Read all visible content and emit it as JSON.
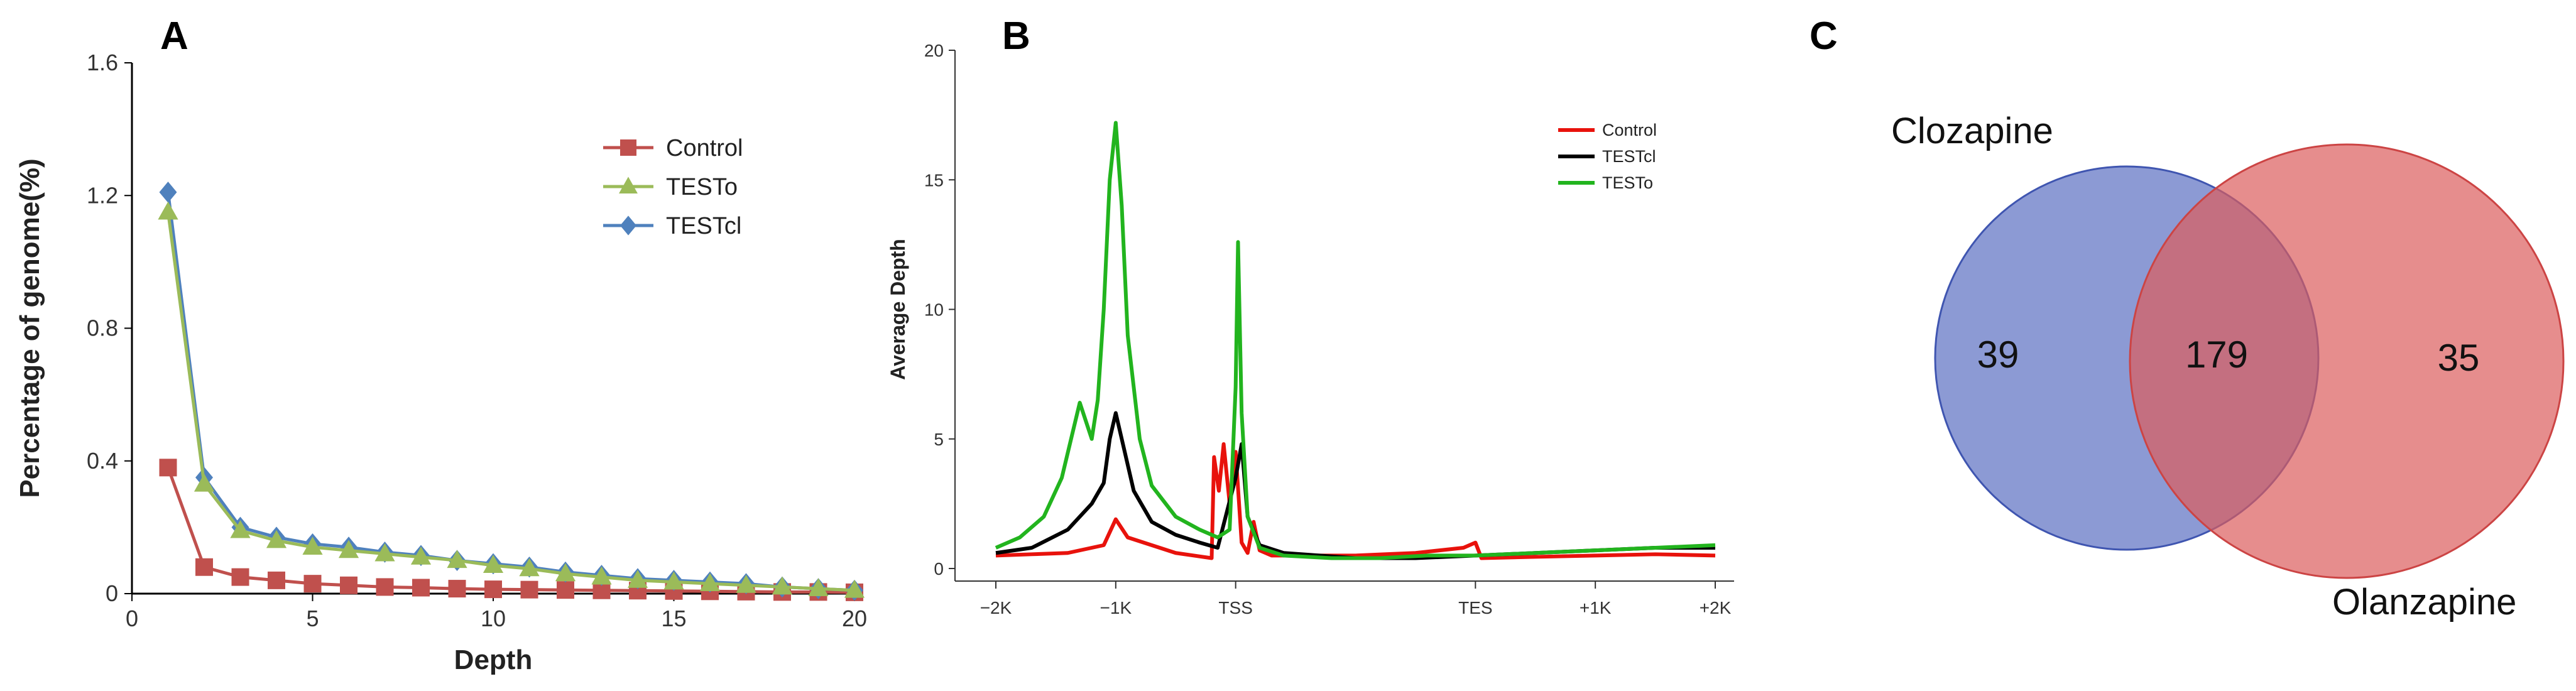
{
  "chart_data": [
    {
      "panel": "A",
      "type": "line",
      "title": "",
      "xlabel": "Depth",
      "ylabel": "Percentage of genome(%)",
      "xlim": [
        0,
        20
      ],
      "ylim": [
        0,
        1.6
      ],
      "xticks": [
        "0",
        "5",
        "10",
        "15",
        "20"
      ],
      "yticks": [
        "0",
        "0.4",
        "0.8",
        "1.2",
        "1.6"
      ],
      "legend_position": "top-right",
      "x": [
        1,
        2,
        3,
        4,
        5,
        6,
        7,
        8,
        9,
        10,
        11,
        12,
        13,
        14,
        15,
        16,
        17,
        18,
        19,
        20
      ],
      "series": [
        {
          "name": "Control",
          "color": "#c0504d",
          "marker": "square",
          "values": [
            0.38,
            0.08,
            0.05,
            0.04,
            0.03,
            0.025,
            0.02,
            0.018,
            0.015,
            0.013,
            0.012,
            0.011,
            0.01,
            0.009,
            0.008,
            0.007,
            0.006,
            0.005,
            0.005,
            0.004
          ]
        },
        {
          "name": "TESTo",
          "color": "#9bbb59",
          "marker": "triangle",
          "values": [
            1.15,
            0.33,
            0.19,
            0.16,
            0.14,
            0.13,
            0.12,
            0.11,
            0.1,
            0.085,
            0.075,
            0.06,
            0.05,
            0.04,
            0.035,
            0.03,
            0.025,
            0.02,
            0.015,
            0.01
          ]
        },
        {
          "name": "TESTcl",
          "color": "#4f81bd",
          "marker": "diamond",
          "values": [
            1.21,
            0.35,
            0.2,
            0.17,
            0.15,
            0.14,
            0.125,
            0.115,
            0.1,
            0.09,
            0.08,
            0.065,
            0.055,
            0.045,
            0.04,
            0.035,
            0.03,
            0.02,
            0.015,
            0.01
          ]
        }
      ]
    },
    {
      "panel": "B",
      "type": "line",
      "title": "",
      "xlabel": "",
      "ylabel": "Average Depth",
      "ylim": [
        0,
        20
      ],
      "yticks": [
        "0",
        "5",
        "10",
        "15",
        "20"
      ],
      "xticks": [
        "−2K",
        "−1K",
        "TSS",
        "TES",
        "+1K",
        "+2K"
      ],
      "xtick_positions": [
        0,
        1,
        2,
        4,
        5,
        6
      ],
      "xlim": [
        0,
        6
      ],
      "legend_position": "top-right",
      "series": [
        {
          "name": "Control",
          "color": "#e8120c",
          "x": [
            0,
            0.3,
            0.6,
            0.9,
            1.0,
            1.1,
            1.3,
            1.5,
            1.8,
            1.82,
            1.86,
            1.9,
            1.95,
            2.0,
            2.05,
            2.1,
            2.15,
            2.2,
            2.3,
            2.6,
            3.0,
            3.5,
            3.9,
            4.0,
            4.05,
            4.5,
            5.0,
            5.5,
            6.0
          ],
          "y": [
            0.5,
            0.55,
            0.6,
            0.9,
            1.9,
            1.2,
            0.9,
            0.6,
            0.4,
            4.3,
            3.0,
            4.8,
            2.5,
            4.5,
            1.0,
            0.6,
            1.8,
            0.7,
            0.5,
            0.5,
            0.5,
            0.6,
            0.8,
            1.0,
            0.4,
            0.45,
            0.5,
            0.55,
            0.5
          ]
        },
        {
          "name": "TESTcl",
          "color": "#000000",
          "x": [
            0,
            0.3,
            0.6,
            0.8,
            0.9,
            0.95,
            1.0,
            1.05,
            1.15,
            1.3,
            1.5,
            1.7,
            1.85,
            2.0,
            2.05,
            2.1,
            2.2,
            2.4,
            3.0,
            3.5,
            4.0,
            4.5,
            5.0,
            5.5,
            6.0
          ],
          "y": [
            0.6,
            0.8,
            1.5,
            2.5,
            3.3,
            5.0,
            6.0,
            5.0,
            3.0,
            1.8,
            1.3,
            1.0,
            0.8,
            3.5,
            4.8,
            2.0,
            0.9,
            0.6,
            0.4,
            0.4,
            0.5,
            0.6,
            0.7,
            0.8,
            0.8
          ]
        },
        {
          "name": "TESTo",
          "color": "#22b41e",
          "x": [
            0,
            0.2,
            0.4,
            0.55,
            0.7,
            0.8,
            0.85,
            0.9,
            0.95,
            1.0,
            1.05,
            1.1,
            1.2,
            1.3,
            1.5,
            1.7,
            1.85,
            1.95,
            2.0,
            2.02,
            2.05,
            2.1,
            2.2,
            2.4,
            2.8,
            3.2,
            3.6,
            4.0,
            4.5,
            5.0,
            5.5,
            6.0
          ],
          "y": [
            0.8,
            1.2,
            2.0,
            3.5,
            6.4,
            5.0,
            6.5,
            10.0,
            15.0,
            17.2,
            14.0,
            9.0,
            5.0,
            3.2,
            2.0,
            1.5,
            1.2,
            1.5,
            7.0,
            12.6,
            6.0,
            2.0,
            0.8,
            0.5,
            0.4,
            0.4,
            0.5,
            0.5,
            0.6,
            0.7,
            0.8,
            0.9
          ]
        }
      ]
    },
    {
      "panel": "C",
      "type": "venn",
      "sets": [
        {
          "name": "Clozapine",
          "color": "#5b6fc2",
          "only": 39
        },
        {
          "name": "Olanzapine",
          "color": "#dc5c5c",
          "only": 35
        }
      ],
      "intersection": 179
    }
  ],
  "panels": {
    "a_letter": "A",
    "b_letter": "B",
    "c_letter": "C"
  },
  "venn_text": {
    "left_label": "Clozapine",
    "right_label": "Olanzapine",
    "left_count": "39",
    "overlap_count": "179",
    "right_count": "35"
  }
}
